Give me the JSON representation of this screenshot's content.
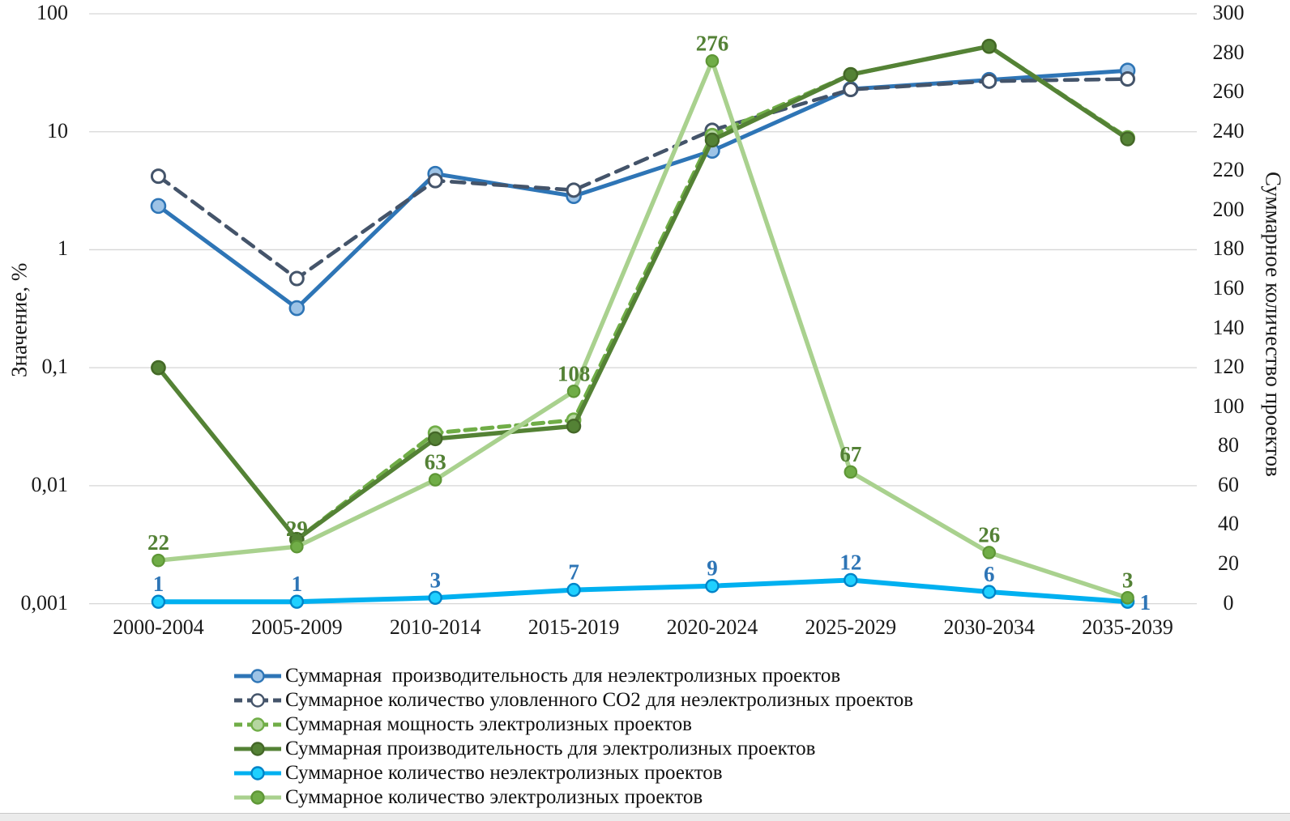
{
  "chart_data": {
    "type": "line",
    "title": "",
    "categories": [
      "2000-2004",
      "2005-2009",
      "2010-2014",
      "2015-2019",
      "2020-2024",
      "2025-2029",
      "2030-2034",
      "2035-2039"
    ],
    "left_axis": {
      "label": "Значение, %",
      "scale": "log",
      "tick_labels": [
        "100",
        "10",
        "1",
        "0,1",
        "0,01",
        "0,001"
      ],
      "tick_values": [
        100,
        10,
        1,
        0.1,
        0.01,
        0.001
      ],
      "range": [
        0.001,
        100
      ],
      "grid": true
    },
    "right_axis": {
      "label": "Суммарное количество проектов",
      "scale": "linear",
      "tick_labels": [
        "300",
        "280",
        "260",
        "240",
        "220",
        "200",
        "180",
        "160",
        "140",
        "120",
        "100",
        "80",
        "60",
        "40",
        "20",
        "0"
      ],
      "tick_values": [
        300,
        280,
        260,
        240,
        220,
        200,
        180,
        160,
        140,
        120,
        100,
        80,
        60,
        40,
        20,
        0
      ],
      "range": [
        0,
        300
      ],
      "grid": false
    },
    "legend_position": "bottom",
    "grid_color": "#D6D6D6",
    "series": [
      {
        "name": "Суммарная  производительность для неэлектролизных проектов",
        "axis": "left",
        "style": "solid",
        "color": "#2E75B6",
        "marker": "circle",
        "marker_fill": "#9DC3E6",
        "marker_stroke": "#2E75B6",
        "values": [
          2.35,
          0.32,
          4.4,
          2.85,
          6.9,
          23,
          27.5,
          33
        ]
      },
      {
        "name": "Суммарное количество уловленного CO2 для неэлектролизных проектов",
        "axis": "left",
        "style": "dashed",
        "color": "#44546A",
        "marker": "circle",
        "marker_fill": "#FFFFFF",
        "marker_stroke": "#44546A",
        "values": [
          4.2,
          0.57,
          3.85,
          3.2,
          10.3,
          22.8,
          26.8,
          28
        ]
      },
      {
        "name": "Суммарная мощность электролизных проектов",
        "axis": "left",
        "style": "dashed",
        "color": "#70AD47",
        "marker": "circle",
        "marker_fill": "#B5D6A0",
        "marker_stroke": "#70AD47",
        "values": [
          0.1,
          0.0035,
          0.028,
          0.036,
          9.3,
          30.5,
          53,
          8.9
        ]
      },
      {
        "name": "Суммарная производительность для электролизных проектов",
        "axis": "left",
        "style": "solid",
        "color": "#548235",
        "marker": "circle",
        "marker_fill": "#548235",
        "marker_stroke": "#446728",
        "values": [
          0.1,
          0.0035,
          0.025,
          0.032,
          8.5,
          30.5,
          53,
          8.7
        ]
      },
      {
        "name": "Суммарное количество неэлектролизных проектов",
        "axis": "right",
        "style": "solid",
        "color": "#00B0F0",
        "marker": "circle",
        "marker_fill": "#1FD0FF",
        "marker_stroke": "#0084C8",
        "values": [
          1,
          1,
          3,
          7,
          9,
          12,
          6,
          1
        ],
        "data_labels": {
          "color": "#2E75B6",
          "values": [
            "1",
            "1",
            "3",
            "7",
            "9",
            "12",
            "6",
            "1"
          ],
          "positions": [
            "above",
            "above",
            "above",
            "above",
            "above",
            "above",
            "above",
            "right"
          ]
        }
      },
      {
        "name": "Суммарное количество электролизных проектов",
        "axis": "right",
        "style": "solid",
        "color": "#A9D18E",
        "marker": "circle",
        "marker_fill": "#70AD47",
        "marker_stroke": "#5E9636",
        "values": [
          22,
          29,
          63,
          108,
          276,
          67,
          26,
          3
        ],
        "data_labels": {
          "color": "#538135",
          "values": [
            "22",
            "29",
            "63",
            "108",
            "276",
            "67",
            "26",
            "3"
          ],
          "positions": [
            "above",
            "above",
            "above",
            "above",
            "above",
            "above",
            "above",
            "above"
          ]
        }
      }
    ]
  }
}
